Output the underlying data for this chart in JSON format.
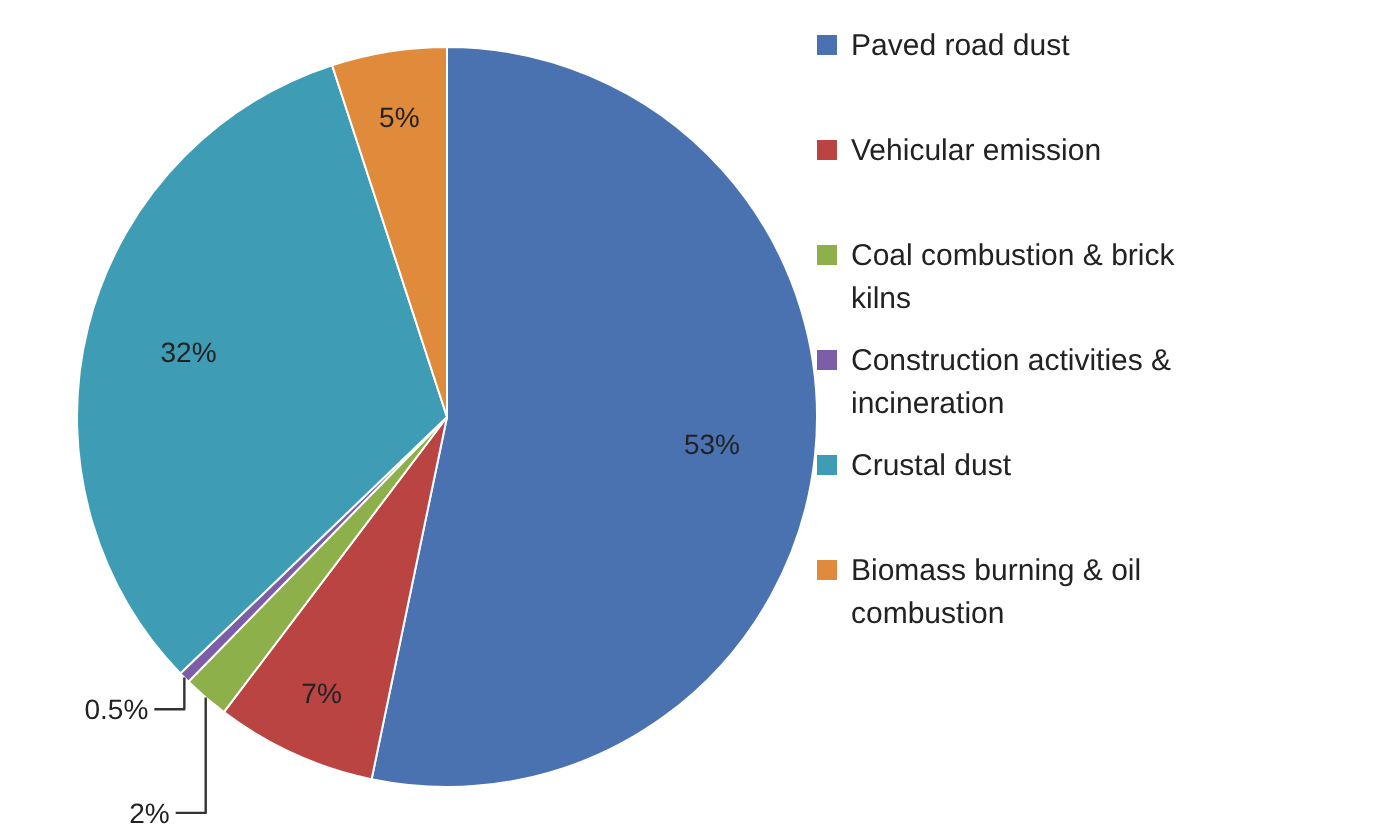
{
  "chart_data": {
    "type": "pie",
    "categories": [
      "Paved road dust",
      "Vehicular emission",
      "Coal combustion & brick kilns",
      "Construction activities & incineration",
      "Crustal dust",
      "Biomass burning & oil combustion"
    ],
    "values": [
      53,
      7,
      2,
      0.5,
      32,
      5
    ],
    "value_labels": [
      "53%",
      "7%",
      "2%",
      "0.5%",
      "32%",
      "5%"
    ],
    "colors": [
      "#4a72b0",
      "#b94441",
      "#8db04a",
      "#7b5ea7",
      "#3e9cb5",
      "#e08a3c"
    ],
    "legend": "right"
  }
}
